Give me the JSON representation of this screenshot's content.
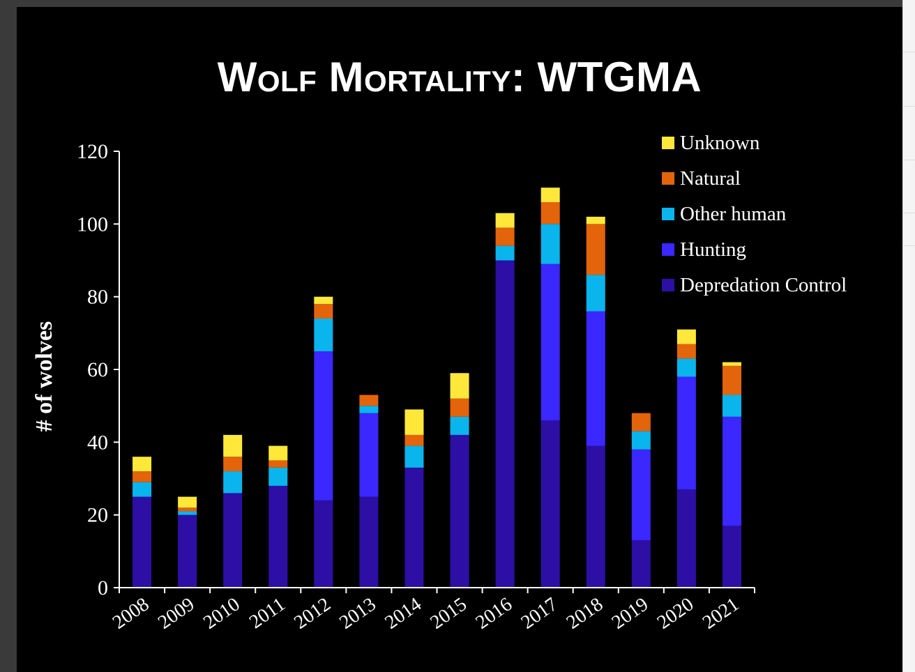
{
  "chart_data": {
    "type": "bar",
    "stacked": true,
    "title": "Wolf Mortality: WTGMA",
    "ylabel": "# of wolves",
    "xlabel": "",
    "ylim": [
      0,
      120
    ],
    "yticks": [
      "0",
      "20",
      "40",
      "60",
      "80",
      "100",
      "120"
    ],
    "categories": [
      "2008",
      "2009",
      "2010",
      "2011",
      "2012",
      "2013",
      "2014",
      "2015",
      "2016",
      "2017",
      "2018",
      "2019",
      "2020",
      "2021"
    ],
    "series": [
      {
        "name": "Depredation Control",
        "color": "#2d0fa6",
        "values": [
          25,
          20,
          26,
          28,
          24,
          25,
          33,
          42,
          90,
          46,
          39,
          13,
          27,
          17
        ]
      },
      {
        "name": "Hunting",
        "color": "#3b27ff",
        "values": [
          0,
          0,
          0,
          0,
          41,
          23,
          0,
          0,
          0,
          43,
          37,
          25,
          31,
          30
        ]
      },
      {
        "name": "Other human",
        "color": "#0ab4ec",
        "values": [
          4,
          1,
          6,
          5,
          9,
          2,
          6,
          5,
          4,
          11,
          10,
          5,
          5,
          6
        ]
      },
      {
        "name": "Natural",
        "color": "#e3640a",
        "values": [
          3,
          1,
          4,
          2,
          4,
          3,
          3,
          5,
          5,
          6,
          14,
          5,
          4,
          8
        ]
      },
      {
        "name": "Unknown",
        "color": "#ffe83a",
        "values": [
          4,
          3,
          6,
          4,
          2,
          0,
          7,
          7,
          4,
          4,
          2,
          0,
          4,
          1
        ]
      }
    ],
    "legend_order": [
      "Unknown",
      "Natural",
      "Other human",
      "Hunting",
      "Depredation Control"
    ],
    "legend_position": "top-right",
    "grid": false
  }
}
